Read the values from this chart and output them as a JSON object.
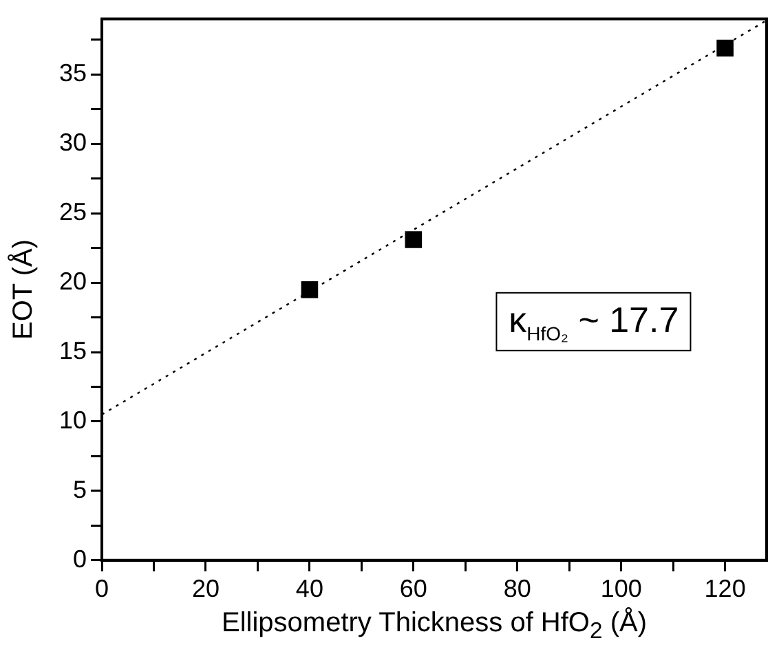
{
  "chart_data": {
    "type": "scatter",
    "xlabel": "Ellipsometry Thickness of HfO$_{2}$ (Å)",
    "ylabel": "EOT (Å)",
    "marker": "square",
    "series": [
      {
        "type": "scatter",
        "color": "#000000",
        "x": [
          40,
          60,
          120
        ],
        "values": [
          19.5,
          23.1,
          36.9
        ]
      },
      {
        "type": "line",
        "color": "#000000",
        "line_style": "dotted",
        "marker": "none",
        "x": [
          0,
          128
        ],
        "values": [
          10.5,
          38.9
        ]
      }
    ],
    "xlim": [
      0,
      128
    ],
    "ylim": [
      0,
      39
    ],
    "xticks": [
      0,
      {
        "value": 10,
        "label": null
      },
      20,
      {
        "value": 30,
        "label": null
      },
      40,
      {
        "value": 50,
        "label": null
      },
      60,
      {
        "value": 70,
        "label": null
      },
      80,
      {
        "value": 90,
        "label": null
      },
      100,
      {
        "value": 110,
        "label": null
      },
      120
    ],
    "yticks": [
      0,
      {
        "value": 2.5,
        "label": null
      },
      5,
      {
        "value": 7.5,
        "label": null
      },
      10,
      {
        "value": 12.5,
        "label": null
      },
      15,
      {
        "value": 17.5,
        "label": null
      },
      20,
      {
        "value": 22.5,
        "label": null
      },
      25,
      {
        "value": 27.5,
        "label": null
      },
      30,
      {
        "value": 32.5,
        "label": null
      },
      35,
      {
        "value": 37.5,
        "label": null
      }
    ],
    "grid": false,
    "legend": false,
    "annotations": [
      "κ$_{HfO₂}$ ~ 17.7"
    ]
  }
}
